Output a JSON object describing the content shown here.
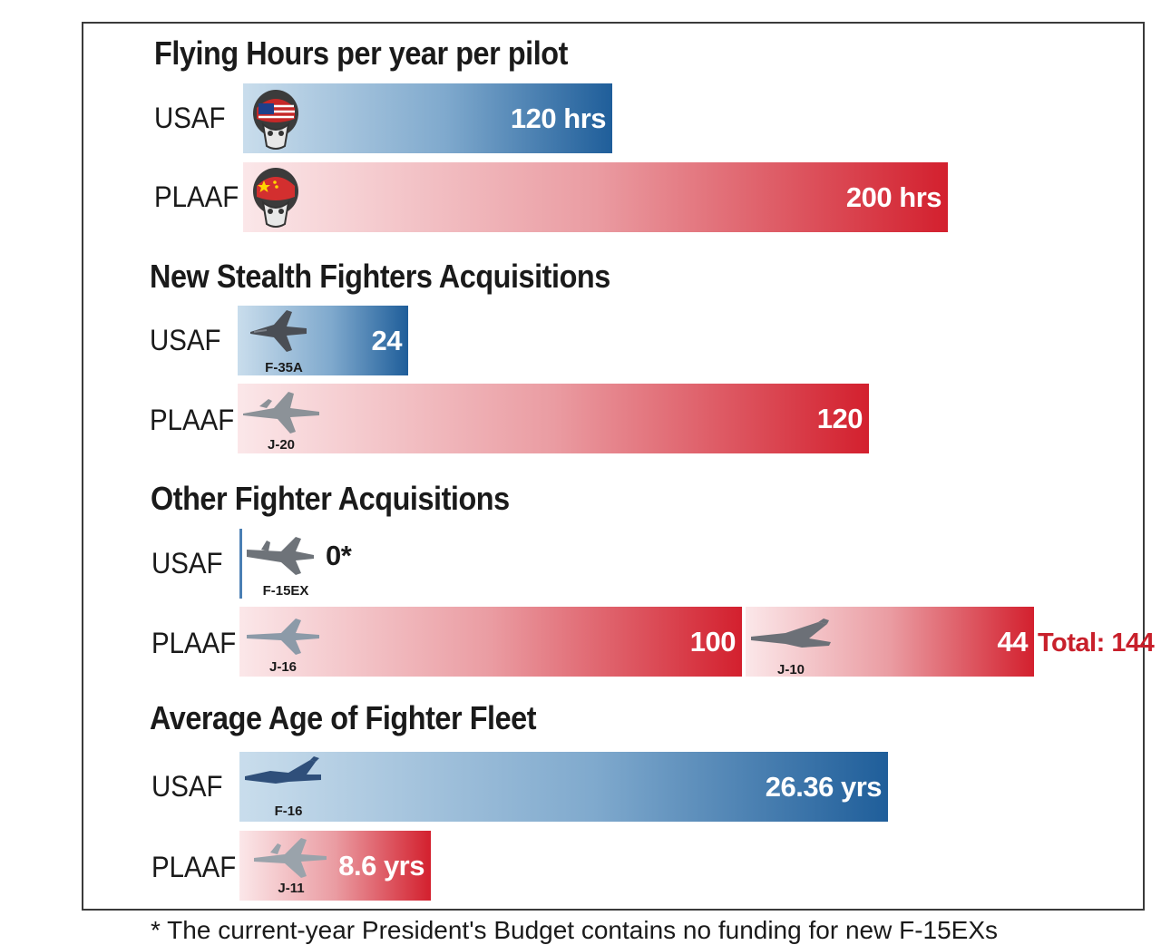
{
  "chart_data": [
    {
      "type": "bar",
      "title": "Flying Hours per year per pilot",
      "categories": [
        "USAF",
        "PLAAF"
      ],
      "values": [
        120,
        200
      ],
      "value_labels": [
        "120 hrs",
        "200 hrs"
      ],
      "colors": [
        "#1f5e9a",
        "#d3202e"
      ],
      "icons": [
        "us-pilot-helmet-icon",
        "china-pilot-helmet-icon"
      ]
    },
    {
      "type": "bar",
      "title": "New Stealth Fighters Acquisitions",
      "categories": [
        "USAF",
        "PLAAF"
      ],
      "values": [
        24,
        120
      ],
      "value_labels": [
        "24",
        "120"
      ],
      "aircraft": [
        "F-35A",
        "J-20"
      ],
      "colors": [
        "#1f5e9a",
        "#d3202e"
      ]
    },
    {
      "type": "bar",
      "title": "Other Fighter Acquisitions",
      "categories": [
        "USAF",
        "PLAAF"
      ],
      "series": [
        {
          "aircraft": "F-15EX",
          "values": [
            0,
            null
          ],
          "value_label": "0*"
        },
        {
          "aircraft": "J-16",
          "values": [
            null,
            100
          ],
          "value_label": "100"
        },
        {
          "aircraft": "J-10",
          "values": [
            null,
            44
          ],
          "value_label": "44"
        }
      ],
      "total_label": "Total: 144",
      "colors": [
        "#1f5e9a",
        "#d3202e"
      ]
    },
    {
      "type": "bar",
      "title": "Average Age of Fighter Fleet",
      "categories": [
        "USAF",
        "PLAAF"
      ],
      "values": [
        26.36,
        8.6
      ],
      "value_labels": [
        "26.36 yrs",
        "8.6 yrs"
      ],
      "aircraft": [
        "F-16",
        "J-11"
      ],
      "colors": [
        "#1f5e9a",
        "#d3202e"
      ]
    }
  ],
  "footnote": "* The current-year President's Budget contains no funding for new F-15EXs"
}
